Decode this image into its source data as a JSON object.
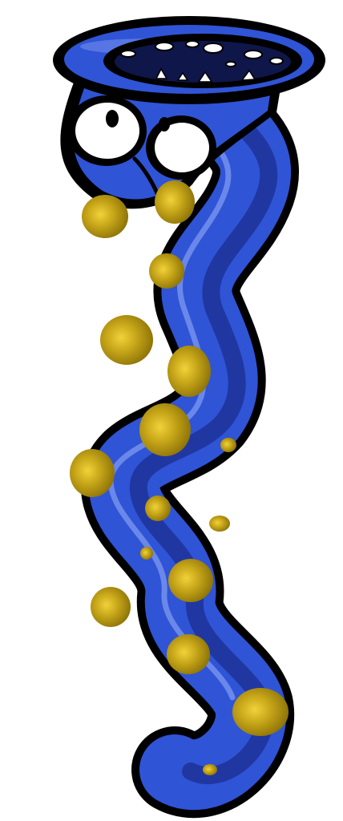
{
  "image": {
    "subject": "cartoon-worm-creature",
    "colors": {
      "background": "#ffffff",
      "outline": "#000000",
      "body": "#2f54d6",
      "body_shadow": "#1d3299",
      "body_highlight": "#7f98f0",
      "spots": "#b2950f",
      "spot_highlight": "#f1d23b",
      "mouth": "#0e164a",
      "teeth": "#ffffff",
      "eye_white": "#ffffff",
      "pupil": "#000000"
    },
    "features": {
      "eye_count": 2,
      "spot_count": 16,
      "upper_teeth_count": 7,
      "lower_teeth_count": 4
    }
  }
}
